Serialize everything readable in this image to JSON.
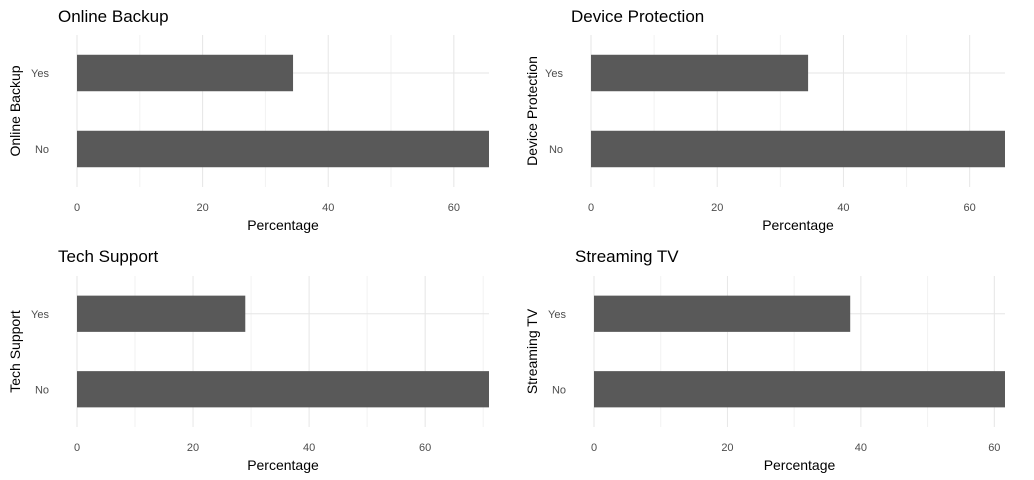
{
  "chart_data": [
    {
      "type": "bar",
      "orientation": "horizontal",
      "title": "Online Backup",
      "xlabel": "Percentage",
      "ylabel": "Online Backup",
      "categories": [
        "No",
        "Yes"
      ],
      "values": [
        65.6,
        34.4
      ],
      "xlim": [
        0,
        65.6
      ],
      "xticks": [
        0,
        20,
        40,
        60
      ],
      "grid": true,
      "color": "#595959"
    },
    {
      "type": "bar",
      "orientation": "horizontal",
      "title": "Device Protection",
      "xlabel": "Percentage",
      "ylabel": "Device Protection",
      "categories": [
        "No",
        "Yes"
      ],
      "values": [
        65.6,
        34.4
      ],
      "xlim": [
        0,
        65.6
      ],
      "xticks": [
        0,
        20,
        40,
        60
      ],
      "grid": true,
      "color": "#595959"
    },
    {
      "type": "bar",
      "orientation": "horizontal",
      "title": "Tech Support",
      "xlabel": "Percentage",
      "ylabel": "Tech Support",
      "categories": [
        "No",
        "Yes"
      ],
      "values": [
        71.0,
        29.0
      ],
      "xlim": [
        0,
        71.0
      ],
      "xticks": [
        0,
        20,
        40,
        60
      ],
      "grid": true,
      "color": "#595959"
    },
    {
      "type": "bar",
      "orientation": "horizontal",
      "title": "Streaming TV",
      "xlabel": "Percentage",
      "ylabel": "Streaming TV",
      "categories": [
        "No",
        "Yes"
      ],
      "values": [
        61.6,
        38.4
      ],
      "xlim": [
        0,
        61.6
      ],
      "xticks": [
        0,
        20,
        40,
        60
      ],
      "grid": true,
      "color": "#595959"
    }
  ]
}
